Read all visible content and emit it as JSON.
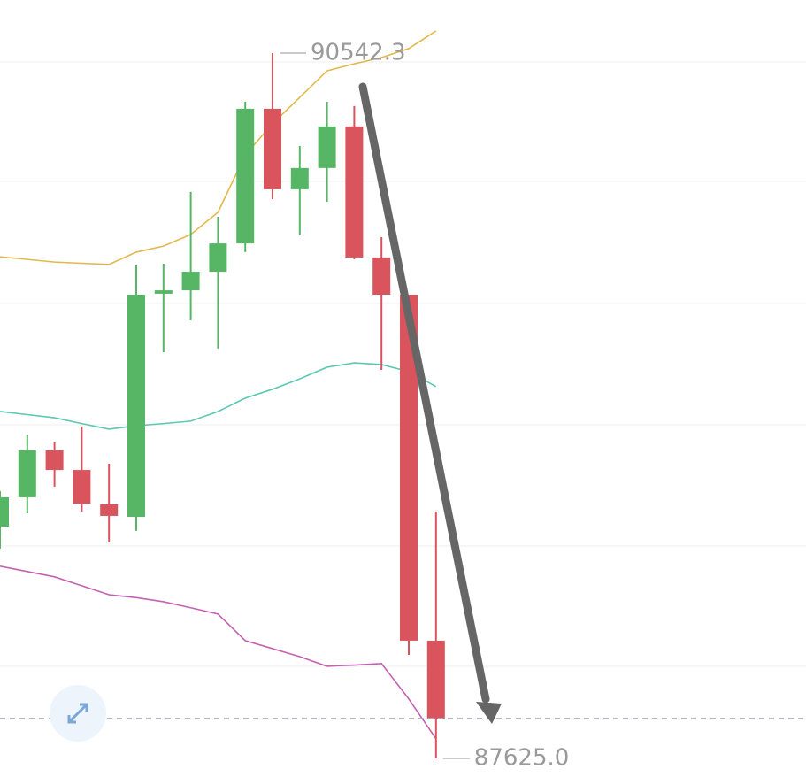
{
  "chart_data": {
    "type": "candlestick",
    "ylim": [
      87548,
      90762
    ],
    "up_color": "#56b665",
    "down_color": "#d9545c",
    "candles": {
      "open": [
        88584,
        88705,
        88899,
        88818,
        88676,
        88624,
        89547,
        89561,
        89638,
        89755,
        90312,
        89979,
        90067,
        90239,
        89697,
        89543,
        88112
      ],
      "close": [
        88705,
        88899,
        88818,
        88679,
        88628,
        89543,
        89561,
        89638,
        89755,
        90312,
        89979,
        90067,
        90239,
        89697,
        89543,
        88112,
        87790
      ],
      "high": [
        88731,
        88961,
        88932,
        88998,
        88844,
        89664,
        89671,
        89968,
        89865,
        90341,
        90542.3,
        90158,
        90341,
        90323,
        89781,
        89543,
        88646
      ],
      "low": [
        88493,
        88639,
        88749,
        88646,
        88518,
        88566,
        89305,
        89437,
        89320,
        89719,
        89938,
        89792,
        89927,
        89690,
        89232,
        88053,
        87625
      ]
    },
    "bands": [
      {
        "color": "#e3b84a",
        "values": [
          89700,
          89689,
          89678,
          89673,
          89668,
          89719,
          89744,
          89792,
          89884,
          90121,
          90250,
          90359,
          90469,
          90498,
          90524,
          90561,
          90634
        ]
      },
      {
        "color": "#5cc7b4",
        "values": [
          89060,
          89047,
          89034,
          89010,
          88987,
          89001,
          89010,
          89020,
          89060,
          89115,
          89152,
          89195,
          89243,
          89261,
          89254,
          89225,
          89163
        ]
      },
      {
        "color": "#c462b2",
        "values": [
          88420,
          88398,
          88376,
          88339,
          88302,
          88290,
          88273,
          88248,
          88222,
          88112,
          88079,
          88046,
          88006,
          88011,
          88017,
          87871,
          87706
        ]
      }
    ],
    "annotations": [
      {
        "value": 90542.3,
        "label": "90542.3"
      },
      {
        "value": 87625,
        "label": "87625.0"
      }
    ]
  }
}
